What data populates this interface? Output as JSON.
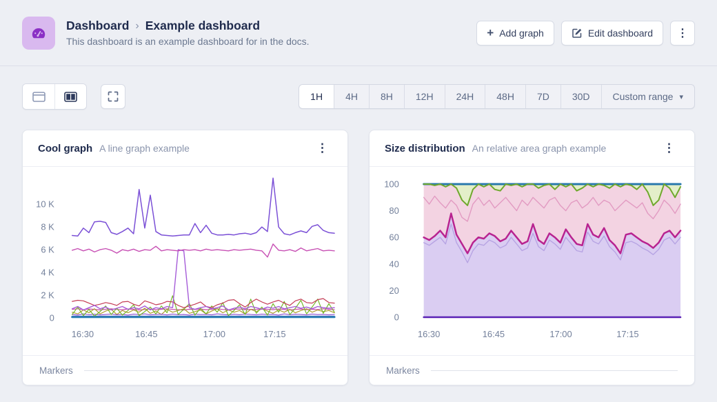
{
  "header": {
    "breadcrumb_root": "Dashboard",
    "breadcrumb_sep": "›",
    "breadcrumb_current": "Example dashboard",
    "subtitle": "This dashboard is an example dashboard for in the docs.",
    "add_graph_label": "Add graph",
    "edit_dashboard_label": "Edit dashboard"
  },
  "glyphs": {
    "kebab": "⋮",
    "caret": "▾",
    "plus": "+"
  },
  "toolbar": {
    "time_ranges": [
      "1H",
      "4H",
      "8H",
      "12H",
      "24H",
      "48H",
      "7D",
      "30D"
    ],
    "active_range": "1H",
    "custom_range_label": "Custom range"
  },
  "panels": [
    {
      "title": "Cool graph",
      "subtitle": "A line graph example",
      "footer_label": "Markers"
    },
    {
      "title": "Size distribution",
      "subtitle": "An relative area graph example",
      "footer_label": "Markers"
    }
  ],
  "chart_data": [
    {
      "type": "line",
      "title": "Cool graph",
      "ylim": [
        0,
        12.5
      ],
      "unit": "K",
      "grid": false,
      "legend": "none",
      "y_ticks": [
        {
          "label": "10 K",
          "value": 10
        },
        {
          "label": "8 K",
          "value": 8
        },
        {
          "label": "6 K",
          "value": 6
        },
        {
          "label": "4 K",
          "value": 4
        },
        {
          "label": "2 K",
          "value": 2
        },
        {
          "label": "0",
          "value": 0
        }
      ],
      "x_ticks": [
        {
          "label": "16:30",
          "pos": 0.04
        },
        {
          "label": "16:45",
          "pos": 0.283
        },
        {
          "label": "17:00",
          "pos": 0.542
        },
        {
          "label": "17:15",
          "pos": 0.772
        }
      ],
      "series": [
        {
          "name": "pink-flat-line",
          "color": "#C94CA8",
          "width": 1.2,
          "values": [
            0.75,
            0.8,
            0.72,
            0.78,
            0.75,
            0.7,
            0.76,
            0.8,
            0.74,
            0.72,
            0.78,
            0.75,
            0.7,
            0.74,
            0.78,
            0.72,
            0.76,
            0.8,
            0.75,
            0.72,
            0.7,
            0.76,
            0.74,
            0.78,
            0.72,
            0.75,
            0.8,
            0.74,
            0.7,
            0.76,
            0.78,
            0.72,
            0.75,
            0.74,
            0.8,
            0.76,
            0.72,
            0.78,
            0.74,
            0.7,
            0.75,
            0.78,
            0.72,
            0.76,
            0.74,
            0.8,
            0.75,
            0.72
          ]
        },
        {
          "name": "olive-line",
          "color": "#AD9B2F",
          "width": 1.2,
          "values": [
            0.5,
            0.35,
            0.7,
            0.45,
            0.8,
            0.35,
            0.6,
            0.75,
            0.3,
            0.65,
            0.45,
            0.7,
            0.5,
            0.85,
            0.4,
            0.6,
            0.3,
            0.75,
            0.5,
            0.65,
            0.8,
            0.4,
            0.55,
            0.7,
            0.35,
            0.6,
            0.8,
            0.45,
            0.7,
            0.5,
            0.65,
            0.35,
            0.75,
            0.55,
            0.8,
            0.6,
            0.4,
            0.7,
            0.5,
            0.75,
            0.45,
            0.65,
            0.8,
            0.5,
            0.7,
            0.55,
            0.65,
            0.45
          ]
        },
        {
          "name": "purple-low-line",
          "color": "#8A4ED0",
          "width": 1.1,
          "values": [
            0.3,
            0.25,
            0.35,
            0.28,
            0.32,
            0.26,
            0.3,
            0.34,
            0.27,
            0.31,
            0.25,
            0.33,
            0.29,
            0.35,
            0.27,
            0.3,
            0.32,
            0.26,
            0.34,
            0.28,
            0.3,
            0.25,
            0.33,
            0.29,
            0.31,
            0.27,
            0.35,
            0.3,
            0.26,
            0.32,
            0.28,
            0.34,
            0.3,
            0.27,
            0.33,
            0.29,
            0.31,
            0.25,
            0.35,
            0.28,
            0.32,
            0.3,
            0.26,
            0.34,
            0.29,
            0.31,
            0.27,
            0.3
          ]
        },
        {
          "name": "indigo-low-line",
          "color": "#5A51C8",
          "width": 1.1,
          "values": 0.16
        },
        {
          "name": "green-line",
          "color": "#76B82A",
          "width": 1.2,
          "values": [
            0.3,
            0.95,
            0.2,
            0.75,
            0.15,
            0.55,
            1.05,
            0.3,
            0.85,
            0.25,
            0.65,
            1.15,
            0.2,
            0.55,
            0.95,
            0.35,
            1.05,
            0.45,
            1.95,
            0.3,
            0.75,
            1.25,
            0.25,
            0.85,
            0.35,
            1.05,
            0.5,
            1.35,
            0.2,
            0.65,
            1.15,
            0.3,
            1.65,
            0.4,
            0.95,
            0.25,
            1.25,
            0.5,
            1.45,
            0.3,
            0.85,
            1.55,
            0.35,
            0.95,
            1.65,
            0.4,
            1.25,
            0.5
          ]
        },
        {
          "name": "red-line",
          "color": "#C43B55",
          "width": 1.2,
          "values": [
            1.45,
            1.55,
            1.5,
            1.3,
            1.1,
            1.2,
            1.35,
            1.25,
            1.1,
            1.4,
            1.45,
            1.2,
            1.05,
            1.5,
            1.35,
            1.15,
            1.25,
            1.45,
            1.4,
            1.1,
            0.9,
            1.05,
            1.2,
            1.4,
            1.0,
            0.9,
            1.15,
            1.3,
            1.55,
            1.6,
            1.25,
            0.95,
            1.35,
            1.65,
            1.4,
            1.2,
            1.4,
            1.55,
            1.3,
            1.1,
            1.5,
            1.65,
            1.35,
            1.3,
            1.6,
            1.7,
            1.35,
            1.3
          ]
        },
        {
          "name": "teal-baseline",
          "color": "#2B7FB3",
          "width": 3,
          "values": 0.07
        },
        {
          "name": "orchid-spike-line",
          "color": "#A55BD8",
          "width": 1.4,
          "values": [
            0.8,
            1.0,
            0.7,
            0.9,
            1.1,
            0.8,
            0.95,
            0.7,
            0.85,
            1.0,
            0.75,
            0.9,
            0.8,
            1.05,
            0.7,
            0.9,
            0.8,
            1.0,
            0.9,
            6.0,
            5.9,
            0.9,
            0.75,
            0.9,
            1.0,
            0.8,
            0.9,
            1.05,
            0.7,
            0.85,
            0.95,
            0.8,
            1.0,
            0.9,
            0.75,
            0.95,
            0.85,
            1.0,
            0.8,
            0.9,
            1.0,
            0.85,
            0.95,
            0.8,
            1.0,
            0.9,
            0.85,
            0.9
          ]
        },
        {
          "name": "magenta-line",
          "color": "#C750B4",
          "width": 1.4,
          "values": [
            5.95,
            6.1,
            5.9,
            6.05,
            5.8,
            6.0,
            6.1,
            5.95,
            5.7,
            6.0,
            5.9,
            6.05,
            5.85,
            6.0,
            5.95,
            6.3,
            5.9,
            6.0,
            5.95,
            5.9,
            6.0,
            5.95,
            6.0,
            5.9,
            6.05,
            5.95,
            6.0,
            5.95,
            5.9,
            6.0,
            5.95,
            6.0,
            6.05,
            5.95,
            5.9,
            5.35,
            6.5,
            5.95,
            5.9,
            6.0,
            5.85,
            6.15,
            5.9,
            6.0,
            6.1,
            5.9,
            5.95,
            5.9
          ]
        },
        {
          "name": "violet-line",
          "color": "#7A4FD6",
          "width": 1.5,
          "values": [
            7.25,
            7.2,
            7.9,
            7.5,
            8.45,
            8.5,
            8.4,
            7.5,
            7.35,
            7.6,
            7.9,
            7.4,
            11.3,
            7.9,
            10.8,
            7.6,
            7.3,
            7.25,
            7.2,
            7.25,
            7.3,
            7.3,
            8.3,
            7.5,
            8.15,
            7.45,
            7.3,
            7.3,
            7.35,
            7.3,
            7.4,
            7.45,
            7.35,
            7.5,
            8.0,
            7.6,
            12.3,
            8.0,
            7.4,
            7.3,
            7.5,
            7.65,
            7.5,
            8.05,
            8.2,
            7.7,
            7.5,
            7.45
          ]
        }
      ]
    },
    {
      "type": "area",
      "title": "Size distribution",
      "ylim": [
        0,
        100
      ],
      "unit": "%",
      "grid": false,
      "legend": "none",
      "y_ticks": [
        {
          "label": "100",
          "value": 100
        },
        {
          "label": "80",
          "value": 80
        },
        {
          "label": "60",
          "value": 60
        },
        {
          "label": "40",
          "value": 40
        },
        {
          "label": "20",
          "value": 20
        },
        {
          "label": "0",
          "value": 0
        }
      ],
      "x_ticks": [
        {
          "label": "16:30",
          "pos": 0.02
        },
        {
          "label": "16:45",
          "pos": 0.272
        },
        {
          "label": "17:00",
          "pos": 0.534
        },
        {
          "label": "17:15",
          "pos": 0.794
        }
      ],
      "series": [
        {
          "name": "total-boundary",
          "color": "#2878AD",
          "width": 3,
          "fill": null,
          "values": 100
        },
        {
          "name": "green-boundary",
          "color": "#6FA82D",
          "width": 2,
          "fill": "#E3EFC9",
          "values": [
            100,
            100,
            99,
            100,
            98,
            100,
            97,
            88,
            84,
            96,
            100,
            98,
            100,
            96,
            95,
            100,
            99,
            100,
            98,
            100,
            100,
            97,
            99,
            100,
            96,
            100,
            98,
            100,
            95,
            97,
            100,
            98,
            100,
            99,
            97,
            100,
            98,
            100,
            99,
            96,
            100,
            94,
            84,
            88,
            100,
            97,
            90,
            98
          ]
        },
        {
          "name": "pink-upper-boundary",
          "color": "#E29BC2",
          "width": 1.4,
          "fill": "#F3D3E2",
          "values": [
            90,
            85,
            91,
            86,
            82,
            88,
            84,
            75,
            72,
            85,
            90,
            84,
            88,
            82,
            86,
            90,
            85,
            80,
            88,
            84,
            90,
            86,
            82,
            88,
            90,
            84,
            80,
            86,
            88,
            82,
            85,
            90,
            84,
            88,
            86,
            80,
            84,
            88,
            85,
            82,
            86,
            78,
            74,
            80,
            88,
            84,
            78,
            85
          ]
        },
        {
          "name": "magenta-boundary",
          "color": "#B82390",
          "width": 2.5,
          "fill": "#F3D3E2",
          "values": [
            60,
            58,
            61,
            65,
            60,
            78,
            62,
            55,
            48,
            56,
            60,
            59,
            63,
            61,
            57,
            59,
            65,
            60,
            55,
            57,
            70,
            58,
            55,
            63,
            60,
            56,
            66,
            60,
            55,
            54,
            70,
            62,
            60,
            67,
            58,
            54,
            48,
            62,
            63,
            60,
            57,
            55,
            52,
            56,
            63,
            65,
            60,
            65
          ]
        },
        {
          "name": "lavender-boundary",
          "color": "#B7A4E3",
          "width": 1.4,
          "fill": "#DACDF2",
          "values": [
            56,
            54,
            57,
            60,
            55,
            70,
            56,
            49,
            41,
            50,
            55,
            54,
            58,
            56,
            52,
            54,
            60,
            55,
            50,
            52,
            63,
            53,
            50,
            58,
            55,
            51,
            60,
            55,
            50,
            49,
            64,
            57,
            55,
            61,
            53,
            49,
            43,
            56,
            57,
            55,
            52,
            50,
            47,
            51,
            58,
            60,
            55,
            60
          ]
        },
        {
          "name": "base-boundary",
          "color": "#5A21B5",
          "width": 2.5,
          "fill": "#DACDF2",
          "values": 0
        }
      ]
    }
  ]
}
